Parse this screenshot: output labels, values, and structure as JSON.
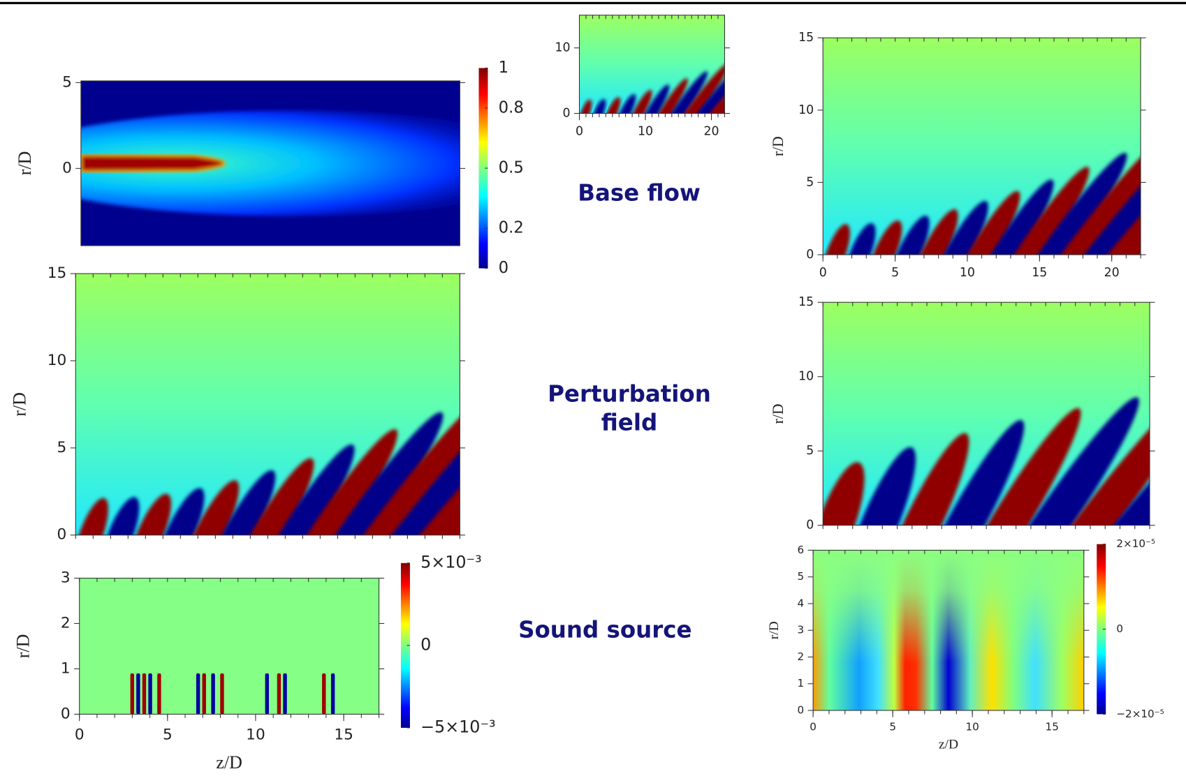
{
  "panels": [
    {
      "ylabel": "r/D",
      "ylim": [
        -4.5,
        5.1
      ],
      "yticks": [
        5,
        0
      ]
    },
    {
      "xlim": [
        0,
        22
      ],
      "ylim": [
        0,
        15
      ],
      "xticks": [
        0,
        10,
        20
      ],
      "yticks": [
        0,
        10
      ]
    },
    {
      "ylabel": "r/D",
      "xlim": [
        0,
        22
      ],
      "ylim": [
        0,
        15
      ],
      "xticks": [
        0,
        5,
        10,
        15,
        20
      ],
      "yticks": [
        0,
        5,
        10,
        15
      ]
    },
    {
      "ylabel": "r/D",
      "xlim": [
        0,
        22
      ],
      "ylim": [
        0,
        15
      ],
      "yticks": [
        0,
        5,
        10,
        15
      ]
    },
    {
      "ylabel": "r/D",
      "xlim": [
        0,
        22
      ],
      "ylim": [
        0,
        15
      ],
      "yticks": [
        0,
        5,
        10,
        15
      ]
    },
    {
      "ylabel": "r/D",
      "xlabel": "z/D",
      "xlim": [
        0,
        17
      ],
      "ylim": [
        0,
        3
      ],
      "xticks": [
        0,
        5,
        10,
        15
      ],
      "yticks": [
        0,
        1,
        2,
        3
      ]
    },
    {
      "ylabel": "r/D",
      "xlabel": "z/D",
      "xlim": [
        0,
        17
      ],
      "ylim": [
        0,
        6
      ],
      "xticks": [
        0,
        5,
        10,
        15
      ],
      "yticks": [
        0,
        1,
        2,
        3,
        4,
        5,
        6
      ]
    }
  ],
  "colorbars": [
    {
      "clim": [
        0,
        1
      ],
      "ticks": [
        1,
        0.8,
        0.5,
        0.2,
        0
      ]
    },
    {
      "clim": [
        -0.005,
        0.005
      ],
      "ticks": [
        {
          "value": 0.005,
          "label": "5×10⁻³"
        },
        0,
        {
          "value": -0.005,
          "label": "−5×10⁻³"
        }
      ]
    },
    {
      "clim": [
        -2e-05,
        2e-05
      ],
      "ticks": [
        {
          "value": 2e-05,
          "label": "2×10⁻⁵"
        },
        0,
        {
          "value": -2e-05,
          "label": "−2×10⁻⁵"
        }
      ]
    }
  ],
  "labels": {
    "base_flow": "Base flow",
    "perturbation_field": [
      "Perturbation",
      "field"
    ],
    "sound_source": "Sound source"
  }
}
